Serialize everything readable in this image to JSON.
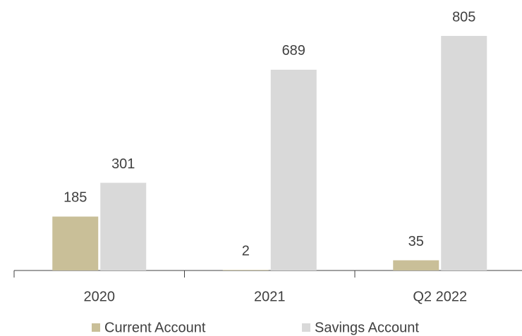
{
  "chart_data": {
    "type": "bar",
    "categories": [
      "2020",
      "2021",
      "Q2 2022"
    ],
    "series": [
      {
        "name": "Current Account",
        "color": "#c9bf98",
        "values": [
          185,
          2,
          35
        ]
      },
      {
        "name": "Savings Account",
        "color": "#d9d9d9",
        "values": [
          301,
          689,
          805
        ]
      }
    ],
    "legend": "bottom"
  }
}
